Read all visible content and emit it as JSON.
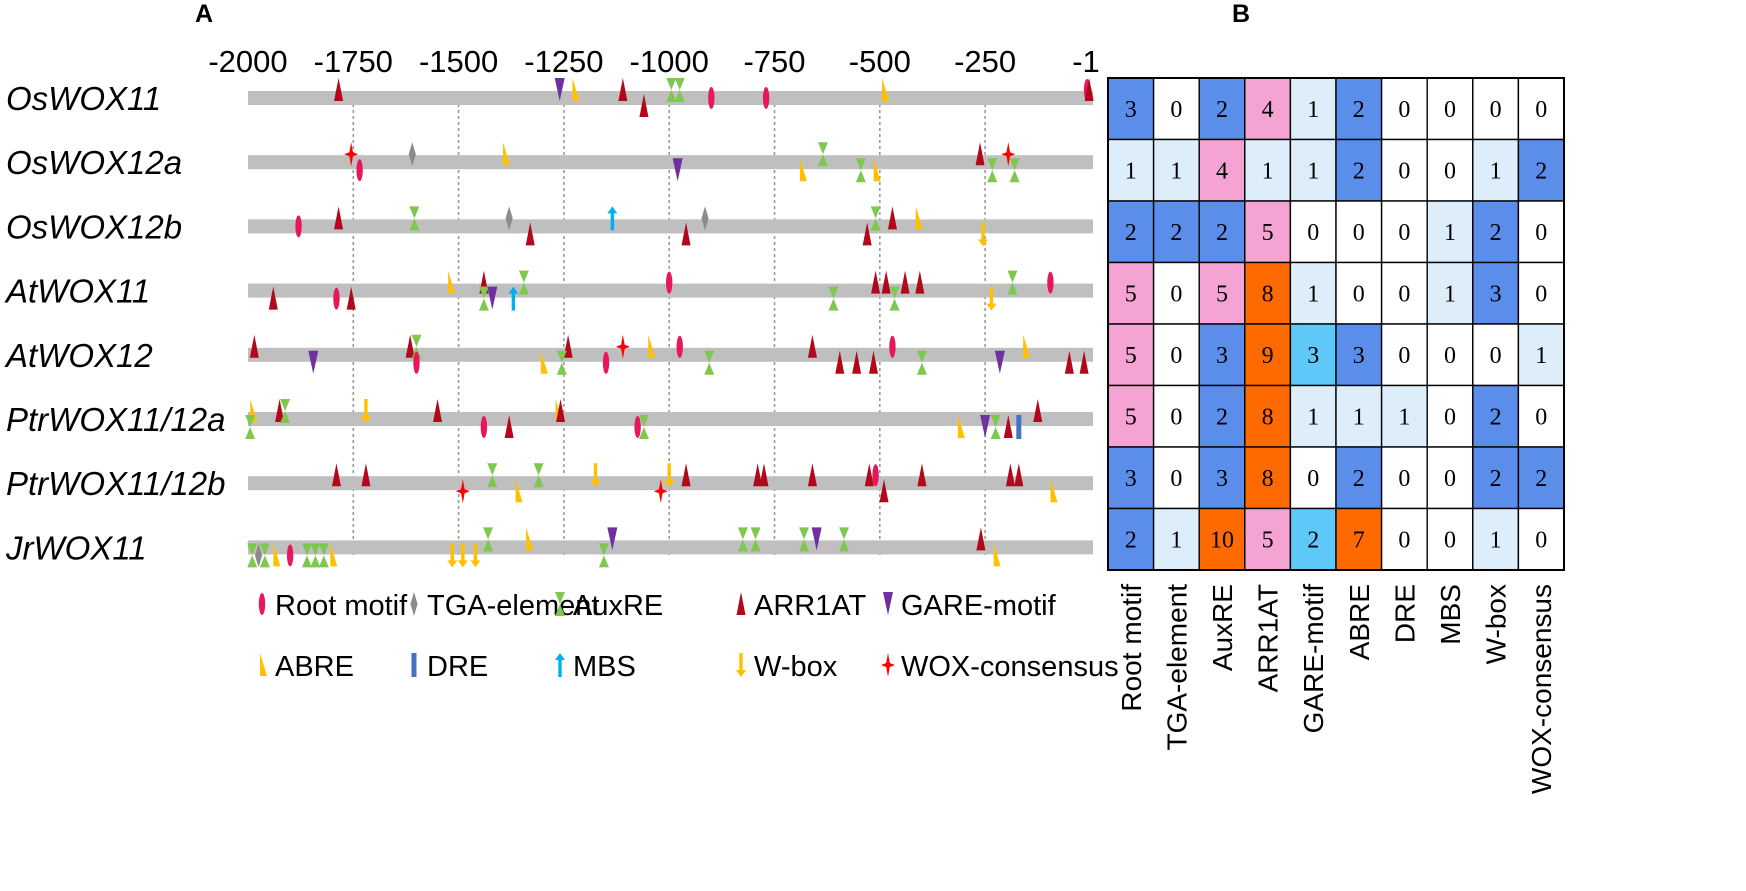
{
  "panels": {
    "a": "A",
    "b": "B"
  },
  "axis": {
    "min": -2000,
    "max": -1,
    "ticks": [
      {
        "value": -2000,
        "label": "-2000"
      },
      {
        "value": -1750,
        "label": "-1750"
      },
      {
        "value": -1500,
        "label": "-1500"
      },
      {
        "value": -1250,
        "label": "-1250"
      },
      {
        "value": -1000,
        "label": "-1000"
      },
      {
        "value": -750,
        "label": "-750"
      },
      {
        "value": -500,
        "label": "-500"
      },
      {
        "value": -250,
        "label": "-250"
      },
      {
        "value": -1,
        "label": "-1"
      }
    ]
  },
  "genes": [
    "OsWOX11",
    "OsWOX12a",
    "OsWOX12b",
    "AtWOX11",
    "AtWOX12",
    "PtrWOX11/12a",
    "PtrWOX11/12b",
    "JrWOX11"
  ],
  "motif_styles": {
    "root": {
      "label": "Root motif",
      "color": "#e8175d",
      "shape": "ellipse"
    },
    "tga": {
      "label": "TGA-element",
      "color": "#8c8c8c",
      "shape": "diamond"
    },
    "auxre": {
      "label": "AuxRE",
      "color": "#7ec850",
      "shape": "hourglass"
    },
    "arr1at": {
      "label": "ARR1AT",
      "color": "#b2081c",
      "shape": "triangle"
    },
    "gare": {
      "label": "GARE-motif",
      "color": "#7030a0",
      "shape": "down-triangle"
    },
    "abre": {
      "label": "ABRE",
      "color": "#ffc000",
      "shape": "wedge"
    },
    "dre": {
      "label": "DRE",
      "color": "#4472c4",
      "shape": "bar"
    },
    "mbs": {
      "label": "MBS",
      "color": "#00b0f0",
      "shape": "up-arrow"
    },
    "wbox": {
      "label": "W-box",
      "color": "#ffc000",
      "shape": "down-arrow"
    },
    "wox": {
      "label": "WOX-consensus",
      "color": "#ff0000",
      "shape": "star"
    }
  },
  "legend": [
    [
      "root",
      "tga",
      "auxre",
      "arr1at",
      "gare"
    ],
    [
      "abre",
      "dre",
      "mbs",
      "wbox",
      "wox"
    ]
  ],
  "motifs": [
    [
      {
        "t": "arr1at",
        "p": -1785,
        "s": "top"
      },
      {
        "t": "gare",
        "p": -1260,
        "s": "top"
      },
      {
        "t": "abre",
        "p": -1225,
        "s": "top"
      },
      {
        "t": "arr1at",
        "p": -1110,
        "s": "top"
      },
      {
        "t": "arr1at",
        "p": -1060,
        "s": "bottom"
      },
      {
        "t": "auxre",
        "p": -995,
        "s": "top"
      },
      {
        "t": "auxre",
        "p": -975,
        "s": "top"
      },
      {
        "t": "root",
        "p": -900,
        "s": "mid"
      },
      {
        "t": "root",
        "p": -770,
        "s": "mid"
      },
      {
        "t": "abre",
        "p": -490,
        "s": "top"
      },
      {
        "t": "root",
        "p": -8,
        "s": "top"
      },
      {
        "t": "arr1at",
        "p": -3,
        "s": "top"
      }
    ],
    [
      {
        "t": "wox",
        "p": -1755,
        "s": "top"
      },
      {
        "t": "root",
        "p": -1735,
        "s": "bottom"
      },
      {
        "t": "tga",
        "p": -1610,
        "s": "top"
      },
      {
        "t": "abre",
        "p": -1390,
        "s": "top"
      },
      {
        "t": "gare",
        "p": -980,
        "s": "bottom"
      },
      {
        "t": "auxre",
        "p": -635,
        "s": "top"
      },
      {
        "t": "abre",
        "p": -685,
        "s": "bottom"
      },
      {
        "t": "auxre",
        "p": -545,
        "s": "bottom"
      },
      {
        "t": "abre",
        "p": -510,
        "s": "bottom"
      },
      {
        "t": "arr1at",
        "p": -262,
        "s": "top"
      },
      {
        "t": "auxre",
        "p": -233,
        "s": "bottom"
      },
      {
        "t": "wox",
        "p": -195,
        "s": "top"
      },
      {
        "t": "auxre",
        "p": -180,
        "s": "bottom"
      }
    ],
    [
      {
        "t": "root",
        "p": -1880,
        "s": "mid"
      },
      {
        "t": "arr1at",
        "p": -1785,
        "s": "top"
      },
      {
        "t": "auxre",
        "p": -1605,
        "s": "top"
      },
      {
        "t": "tga",
        "p": -1380,
        "s": "top"
      },
      {
        "t": "arr1at",
        "p": -1330,
        "s": "bottom"
      },
      {
        "t": "mbs",
        "p": -1135,
        "s": "top"
      },
      {
        "t": "tga",
        "p": -915,
        "s": "top"
      },
      {
        "t": "arr1at",
        "p": -960,
        "s": "bottom"
      },
      {
        "t": "auxre",
        "p": -510,
        "s": "top"
      },
      {
        "t": "arr1at",
        "p": -470,
        "s": "top"
      },
      {
        "t": "arr1at",
        "p": -530,
        "s": "bottom"
      },
      {
        "t": "abre",
        "p": -410,
        "s": "top"
      },
      {
        "t": "wbox",
        "p": -255,
        "s": "bottom"
      }
    ],
    [
      {
        "t": "arr1at",
        "p": -1940,
        "s": "bottom"
      },
      {
        "t": "root",
        "p": -1790,
        "s": "bottom"
      },
      {
        "t": "arr1at",
        "p": -1755,
        "s": "bottom"
      },
      {
        "t": "abre",
        "p": -1520,
        "s": "top"
      },
      {
        "t": "arr1at",
        "p": -1440,
        "s": "top"
      },
      {
        "t": "auxre",
        "p": -1440,
        "s": "bottom"
      },
      {
        "t": "gare",
        "p": -1420,
        "s": "bottom"
      },
      {
        "t": "mbs",
        "p": -1370,
        "s": "bottom"
      },
      {
        "t": "auxre",
        "p": -1345,
        "s": "top"
      },
      {
        "t": "root",
        "p": -1000,
        "s": "top"
      },
      {
        "t": "auxre",
        "p": -610,
        "s": "bottom"
      },
      {
        "t": "arr1at",
        "p": -510,
        "s": "top"
      },
      {
        "t": "arr1at",
        "p": -485,
        "s": "top"
      },
      {
        "t": "arr1at",
        "p": -440,
        "s": "top"
      },
      {
        "t": "arr1at",
        "p": -405,
        "s": "top"
      },
      {
        "t": "auxre",
        "p": -465,
        "s": "bottom"
      },
      {
        "t": "wbox",
        "p": -235,
        "s": "bottom"
      },
      {
        "t": "auxre",
        "p": -185,
        "s": "top"
      },
      {
        "t": "root",
        "p": -95,
        "s": "top"
      }
    ],
    [
      {
        "t": "arr1at",
        "p": -1985,
        "s": "top"
      },
      {
        "t": "gare",
        "p": -1845,
        "s": "bottom"
      },
      {
        "t": "arr1at",
        "p": -1615,
        "s": "top"
      },
      {
        "t": "auxre",
        "p": -1600,
        "s": "top"
      },
      {
        "t": "root",
        "p": -1600,
        "s": "bottom"
      },
      {
        "t": "abre",
        "p": -1300,
        "s": "bottom"
      },
      {
        "t": "arr1at",
        "p": -1240,
        "s": "top"
      },
      {
        "t": "auxre",
        "p": -1255,
        "s": "bottom"
      },
      {
        "t": "root",
        "p": -1150,
        "s": "bottom"
      },
      {
        "t": "wox",
        "p": -1110,
        "s": "top"
      },
      {
        "t": "abre",
        "p": -1045,
        "s": "top"
      },
      {
        "t": "root",
        "p": -975,
        "s": "top"
      },
      {
        "t": "auxre",
        "p": -905,
        "s": "bottom"
      },
      {
        "t": "arr1at",
        "p": -660,
        "s": "top"
      },
      {
        "t": "arr1at",
        "p": -595,
        "s": "bottom"
      },
      {
        "t": "arr1at",
        "p": -555,
        "s": "bottom"
      },
      {
        "t": "arr1at",
        "p": -515,
        "s": "bottom"
      },
      {
        "t": "root",
        "p": -470,
        "s": "top"
      },
      {
        "t": "auxre",
        "p": -400,
        "s": "bottom"
      },
      {
        "t": "gare",
        "p": -215,
        "s": "bottom"
      },
      {
        "t": "abre",
        "p": -155,
        "s": "top"
      },
      {
        "t": "arr1at",
        "p": -50,
        "s": "bottom"
      },
      {
        "t": "arr1at",
        "p": -15,
        "s": "bottom"
      }
    ],
    [
      {
        "t": "abre",
        "p": -1990,
        "s": "top"
      },
      {
        "t": "auxre",
        "p": -1995,
        "s": "bottom"
      },
      {
        "t": "arr1at",
        "p": -1925,
        "s": "top"
      },
      {
        "t": "auxre",
        "p": -1912,
        "s": "top"
      },
      {
        "t": "wbox",
        "p": -1720,
        "s": "top"
      },
      {
        "t": "arr1at",
        "p": -1550,
        "s": "top"
      },
      {
        "t": "root",
        "p": -1440,
        "s": "bottom"
      },
      {
        "t": "arr1at",
        "p": -1380,
        "s": "bottom"
      },
      {
        "t": "abre",
        "p": -1265,
        "s": "top"
      },
      {
        "t": "arr1at",
        "p": -1258,
        "s": "top"
      },
      {
        "t": "root",
        "p": -1075,
        "s": "bottom"
      },
      {
        "t": "auxre",
        "p": -1060,
        "s": "bottom"
      },
      {
        "t": "dre",
        "p": -170,
        "s": "bottom"
      },
      {
        "t": "gare",
        "p": -250,
        "s": "bottom"
      },
      {
        "t": "auxre",
        "p": -225,
        "s": "bottom"
      },
      {
        "t": "arr1at",
        "p": -195,
        "s": "bottom"
      },
      {
        "t": "abre",
        "p": -310,
        "s": "bottom"
      },
      {
        "t": "arr1at",
        "p": -125,
        "s": "top"
      }
    ],
    [
      {
        "t": "arr1at",
        "p": -1790,
        "s": "top"
      },
      {
        "t": "arr1at",
        "p": -1720,
        "s": "top"
      },
      {
        "t": "wox",
        "p": -1490,
        "s": "bottom"
      },
      {
        "t": "auxre",
        "p": -1420,
        "s": "top"
      },
      {
        "t": "abre",
        "p": -1360,
        "s": "bottom"
      },
      {
        "t": "auxre",
        "p": -1310,
        "s": "top"
      },
      {
        "t": "wbox",
        "p": -1175,
        "s": "top"
      },
      {
        "t": "wox",
        "p": -1020,
        "s": "bottom"
      },
      {
        "t": "wbox",
        "p": -1000,
        "s": "top"
      },
      {
        "t": "arr1at",
        "p": -960,
        "s": "top"
      },
      {
        "t": "arr1at",
        "p": -790,
        "s": "top"
      },
      {
        "t": "arr1at",
        "p": -775,
        "s": "top"
      },
      {
        "t": "arr1at",
        "p": -660,
        "s": "top"
      },
      {
        "t": "arr1at",
        "p": -525,
        "s": "top"
      },
      {
        "t": "root",
        "p": -510,
        "s": "top"
      },
      {
        "t": "arr1at",
        "p": -490,
        "s": "bottom"
      },
      {
        "t": "arr1at",
        "p": -400,
        "s": "top"
      },
      {
        "t": "arr1at",
        "p": -190,
        "s": "top"
      },
      {
        "t": "arr1at",
        "p": -170,
        "s": "top"
      },
      {
        "t": "abre",
        "p": -90,
        "s": "bottom"
      }
    ],
    [
      {
        "t": "auxre",
        "p": -1990,
        "s": "bottom"
      },
      {
        "t": "tga",
        "p": -1975,
        "s": "bottom"
      },
      {
        "t": "auxre",
        "p": -1960,
        "s": "bottom"
      },
      {
        "t": "abre",
        "p": -1935,
        "s": "bottom"
      },
      {
        "t": "root",
        "p": -1900,
        "s": "bottom"
      },
      {
        "t": "auxre",
        "p": -1860,
        "s": "bottom"
      },
      {
        "t": "auxre",
        "p": -1840,
        "s": "bottom"
      },
      {
        "t": "auxre",
        "p": -1820,
        "s": "bottom"
      },
      {
        "t": "abre",
        "p": -1800,
        "s": "bottom"
      },
      {
        "t": "wbox",
        "p": -1515,
        "s": "bottom"
      },
      {
        "t": "wbox",
        "p": -1490,
        "s": "bottom"
      },
      {
        "t": "wbox",
        "p": -1460,
        "s": "bottom"
      },
      {
        "t": "auxre",
        "p": -1430,
        "s": "top"
      },
      {
        "t": "abre",
        "p": -1335,
        "s": "top"
      },
      {
        "t": "auxre",
        "p": -1155,
        "s": "bottom"
      },
      {
        "t": "gare",
        "p": -1135,
        "s": "top"
      },
      {
        "t": "auxre",
        "p": -825,
        "s": "top"
      },
      {
        "t": "auxre",
        "p": -795,
        "s": "top"
      },
      {
        "t": "auxre",
        "p": -680,
        "s": "top"
      },
      {
        "t": "gare",
        "p": -650,
        "s": "top"
      },
      {
        "t": "auxre",
        "p": -585,
        "s": "top"
      },
      {
        "t": "arr1at",
        "p": -260,
        "s": "top"
      },
      {
        "t": "abre",
        "p": -225,
        "s": "bottom"
      }
    ]
  ],
  "heatmap": {
    "columns": [
      "Root motif",
      "TGA-element",
      "AuxRE",
      "ARR1AT",
      "GARE-motif",
      "ABRE",
      "DRE",
      "MBS",
      "W-box",
      "WOX-consensus"
    ],
    "colors": {
      "0": "#ffffff",
      "1": "#ddeefa",
      "2": "#5b8dea",
      "3": "#5b8dea",
      "4": "#f5a3d2",
      "5": "#f5a3d2",
      "high": "#ff6a00",
      "gare2": "#5ec8f8"
    },
    "values": [
      [
        "3",
        "0",
        "2",
        "4",
        "1",
        "2",
        "0",
        "0",
        "0",
        "0"
      ],
      [
        "1",
        "1",
        "4",
        "1",
        "1",
        "2",
        "0",
        "0",
        "1",
        "2"
      ],
      [
        "2",
        "2",
        "2",
        "5",
        "0",
        "0",
        "0",
        "1",
        "2",
        "0"
      ],
      [
        "5",
        "0",
        "5",
        "8",
        "1",
        "0",
        "0",
        "1",
        "3",
        "0"
      ],
      [
        "5",
        "0",
        "3",
        "9",
        "3",
        "3",
        "0",
        "0",
        "0",
        "1"
      ],
      [
        "5",
        "0",
        "2",
        "8",
        "1",
        "1",
        "1",
        "0",
        "2",
        "0"
      ],
      [
        "3",
        "0",
        "3",
        "8",
        "0",
        "2",
        "0",
        "0",
        "2",
        "2"
      ],
      [
        "2",
        "1",
        "10",
        "5",
        "2",
        "7",
        "0",
        "0",
        "1",
        "0"
      ]
    ]
  }
}
